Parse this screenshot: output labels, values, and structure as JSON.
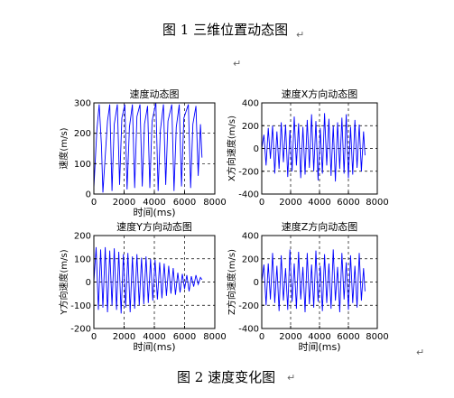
{
  "document": {
    "caption_top": "图 1  三维位置动态图",
    "caption_bottom": "图 2  速度变化图",
    "paragraph_marks": [
      "↵",
      "↵",
      "↵",
      "↵"
    ]
  },
  "chart_data": [
    {
      "type": "line",
      "title": "速度动态图",
      "xlabel": "时间(ms)",
      "ylabel": "速度(m/s)",
      "xlim": [
        0,
        8000
      ],
      "ylim": [
        0,
        300
      ],
      "xticks": [
        0,
        2000,
        4000,
        6000,
        8000
      ],
      "yticks": [
        0,
        100,
        200,
        300
      ],
      "grid": "dashed",
      "color": "#0000ff",
      "x": [
        0,
        200,
        350,
        500,
        600,
        900,
        1050,
        1200,
        1350,
        1550,
        1700,
        1850,
        2050,
        2200,
        2350,
        2550,
        2700,
        2850,
        3050,
        3200,
        3350,
        3550,
        3700,
        3850,
        4100,
        4250,
        4400,
        4600,
        4750,
        4900,
        5150,
        5300,
        5450,
        5650,
        5800,
        5950,
        6250,
        6400,
        6550,
        6750,
        6900,
        7050,
        7150
      ],
      "y": [
        20,
        210,
        295,
        160,
        5,
        240,
        295,
        10,
        230,
        295,
        30,
        250,
        295,
        15,
        220,
        295,
        20,
        255,
        295,
        25,
        230,
        290,
        20,
        240,
        300,
        10,
        210,
        295,
        30,
        240,
        295,
        10,
        220,
        295,
        25,
        250,
        295,
        20,
        230,
        290,
        60,
        230,
        120
      ]
    },
    {
      "type": "line",
      "title": "速度X方向动态图",
      "xlabel": "",
      "ylabel": "X方向速度(m/s)",
      "xlim": [
        0,
        8000
      ],
      "ylim": [
        -400,
        400
      ],
      "xticks": [
        0,
        2000,
        4000,
        6000,
        8000
      ],
      "yticks": [
        -400,
        -200,
        0,
        200,
        400
      ],
      "grid": "dashed",
      "color": "#0000ff",
      "x": [
        0,
        150,
        300,
        450,
        600,
        750,
        900,
        1050,
        1200,
        1350,
        1500,
        1650,
        1800,
        1950,
        2100,
        2250,
        2400,
        2550,
        2700,
        2850,
        3000,
        3150,
        3300,
        3450,
        3600,
        3750,
        3900,
        4050,
        4200,
        4350,
        4500,
        4650,
        4800,
        4950,
        5100,
        5250,
        5400,
        5550,
        5700,
        5850,
        6000,
        6150,
        6300,
        6450,
        6600,
        6750,
        6900,
        7050,
        7150
      ],
      "y": [
        0,
        120,
        -150,
        180,
        -90,
        200,
        -220,
        150,
        -180,
        230,
        -120,
        210,
        -250,
        160,
        -200,
        280,
        -150,
        220,
        -260,
        190,
        -230,
        250,
        -170,
        300,
        -200,
        240,
        -280,
        180,
        -220,
        310,
        -150,
        260,
        -240,
        200,
        -290,
        230,
        -180,
        270,
        -220,
        300,
        -260,
        190,
        -230,
        250,
        -170,
        210,
        -200,
        150,
        -60
      ]
    },
    {
      "type": "line",
      "title": "速度Y方向动态图",
      "xlabel": "时间(ms)",
      "ylabel": "Y方向速度(m/s)",
      "xlim": [
        0,
        8000
      ],
      "ylim": [
        -200,
        200
      ],
      "xticks": [
        0,
        2000,
        4000,
        6000,
        8000
      ],
      "yticks": [
        -200,
        -100,
        0,
        100,
        200
      ],
      "grid": "dashed",
      "color": "#0000ff",
      "x": [
        0,
        150,
        300,
        450,
        600,
        750,
        900,
        1050,
        1200,
        1350,
        1500,
        1650,
        1800,
        1950,
        2100,
        2250,
        2400,
        2550,
        2700,
        2850,
        3000,
        3150,
        3300,
        3450,
        3600,
        3750,
        3900,
        4050,
        4200,
        4350,
        4500,
        4650,
        4800,
        4950,
        5100,
        5250,
        5400,
        5550,
        5700,
        5850,
        6000,
        6150,
        6300,
        6450,
        6600,
        6750,
        6900,
        7050,
        7150
      ],
      "y": [
        0,
        150,
        -120,
        140,
        -110,
        150,
        -130,
        135,
        -100,
        145,
        -120,
        130,
        -135,
        120,
        -110,
        125,
        -130,
        110,
        -115,
        120,
        -100,
        105,
        -95,
        110,
        -90,
        100,
        -80,
        95,
        -75,
        85,
        -70,
        80,
        -60,
        70,
        -50,
        60,
        -55,
        40,
        -45,
        35,
        -30,
        30,
        -40,
        25,
        -20,
        30,
        -10,
        20,
        10
      ]
    },
    {
      "type": "line",
      "title": "速度Z方向动态图",
      "xlabel": "时间(ms)",
      "ylabel": "Z方向速度(m/s)",
      "xlim": [
        0,
        8000
      ],
      "ylim": [
        -400,
        400
      ],
      "xticks": [
        0,
        2000,
        4000,
        6000,
        8000
      ],
      "yticks": [
        -400,
        -200,
        0,
        200,
        400
      ],
      "grid": "dashed",
      "color": "#0000ff",
      "x": [
        0,
        150,
        300,
        450,
        600,
        750,
        900,
        1050,
        1200,
        1350,
        1500,
        1650,
        1800,
        1950,
        2100,
        2250,
        2400,
        2550,
        2700,
        2850,
        3000,
        3150,
        3300,
        3450,
        3600,
        3750,
        3900,
        4050,
        4200,
        4350,
        4500,
        4650,
        4800,
        4950,
        5100,
        5250,
        5400,
        5550,
        5700,
        5850,
        6000,
        6150,
        6300,
        6450,
        6600,
        6750,
        6900,
        7050,
        7150
      ],
      "y": [
        0,
        150,
        -200,
        160,
        -150,
        250,
        -180,
        140,
        -250,
        230,
        -160,
        120,
        -240,
        280,
        -170,
        160,
        -230,
        260,
        -150,
        130,
        -260,
        250,
        -190,
        150,
        -220,
        270,
        -170,
        140,
        -250,
        240,
        -180,
        160,
        -230,
        280,
        -160,
        130,
        -260,
        250,
        -150,
        170,
        -240,
        230,
        -180,
        140,
        -220,
        250,
        -160,
        120,
        -80
      ]
    }
  ]
}
